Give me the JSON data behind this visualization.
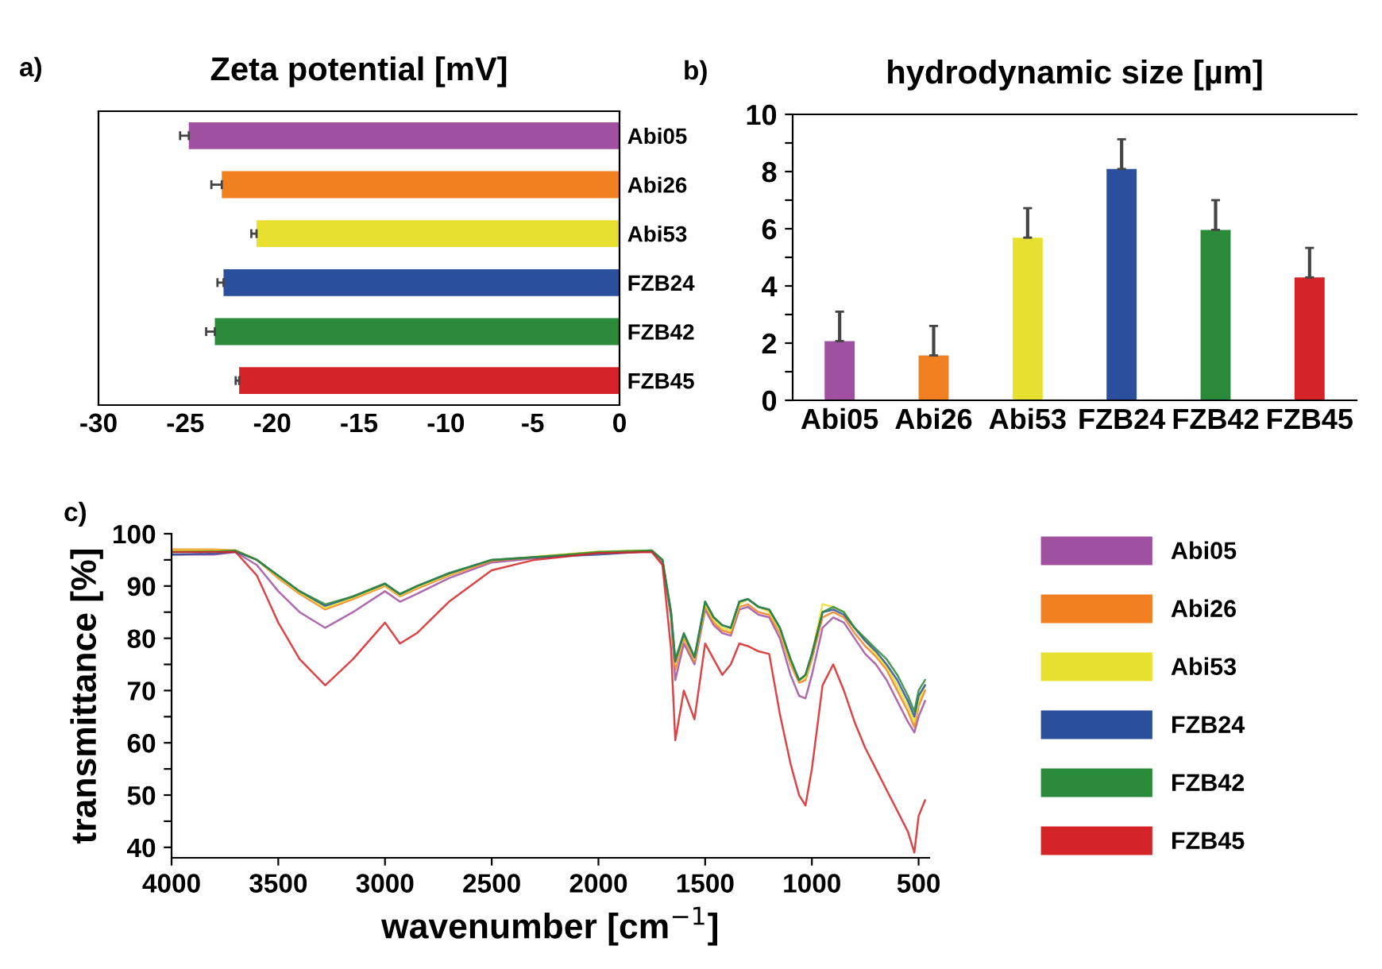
{
  "chart_data": [
    {
      "type": "bar",
      "orientation": "horizontal",
      "title": "Zeta potential [mV]",
      "annotations": [
        "a)"
      ],
      "categories": [
        "Abi05",
        "Abi26",
        "Abi53",
        "FZB24",
        "FZB42",
        "FZB45"
      ],
      "values": [
        -24.8,
        -22.9,
        -20.9,
        -22.8,
        -23.3,
        -21.9
      ],
      "errors": [
        [
          -25.3,
          -24.8
        ],
        [
          -23.5,
          -22.9
        ],
        [
          -21.2,
          -20.9
        ],
        [
          -23.15,
          -22.8
        ],
        [
          -23.8,
          -23.3
        ],
        [
          -22.1,
          -21.9
        ]
      ],
      "colors": [
        "#a050a0",
        "#f08020",
        "#e8e030",
        "#2a4f9c",
        "#2a8a3a",
        "#d42428"
      ],
      "xlim": [
        -30,
        0
      ],
      "xticks": [
        -30,
        -25,
        -20,
        -15,
        -10,
        -5,
        0
      ],
      "grid": false,
      "legend": false
    },
    {
      "type": "bar",
      "title": "hydrodynamic size [µm]",
      "annotations": [
        "b)"
      ],
      "categories": [
        "Abi05",
        "Abi26",
        "Abi53",
        "FZB24",
        "FZB42",
        "FZB45"
      ],
      "values": [
        2.07,
        1.57,
        5.69,
        8.09,
        5.96,
        4.3
      ],
      "errors": [
        [
          2.07,
          3.1
        ],
        [
          1.57,
          2.6
        ],
        [
          5.69,
          6.72
        ],
        [
          8.09,
          9.13
        ],
        [
          5.96,
          7.0
        ],
        [
          4.3,
          5.33
        ]
      ],
      "colors": [
        "#a050a0",
        "#f08020",
        "#e8e030",
        "#2a4f9c",
        "#2a8a3a",
        "#d42428"
      ],
      "ylim": [
        0,
        10
      ],
      "yticks": [
        0,
        {
          "value": 1,
          "label": null
        },
        2,
        {
          "value": 3,
          "label": null
        },
        4,
        {
          "value": 5,
          "label": null
        },
        6,
        {
          "value": 7,
          "label": null
        },
        8,
        {
          "value": 9,
          "label": null
        },
        10
      ],
      "grid": false,
      "legend": false
    },
    {
      "type": "line",
      "annotations": [
        "c)"
      ],
      "xlabel": "wavenumber [cm$^{−1}$]",
      "ylabel": "transmittance [%]",
      "x": [
        4000,
        3800,
        3700,
        3600,
        3500,
        3400,
        3280,
        3150,
        3000,
        2930,
        2850,
        2700,
        2500,
        2300,
        2000,
        1750,
        1700,
        1660,
        1640,
        1600,
        1550,
        1500,
        1460,
        1420,
        1380,
        1340,
        1300,
        1250,
        1200,
        1150,
        1100,
        1060,
        1030,
        1000,
        950,
        900,
        850,
        800,
        750,
        700,
        650,
        600,
        550,
        520,
        500,
        470
      ],
      "series": [
        {
          "name": "Abi05",
          "color": "#a050a0",
          "values": [
            96,
            96,
            96.5,
            94,
            89,
            85,
            82,
            85,
            89,
            87,
            88.5,
            91.5,
            94.5,
            95.3,
            96.3,
            96.6,
            94.5,
            84,
            72,
            79,
            75,
            85.5,
            82.5,
            81,
            80.5,
            85.5,
            86,
            84.5,
            84,
            80,
            73,
            69,
            68.5,
            73,
            82,
            84,
            83,
            80,
            77,
            75,
            72,
            68,
            64,
            62,
            65,
            68
          ]
        },
        {
          "name": "Abi26",
          "color": "#f08020",
          "values": [
            97,
            97,
            96.8,
            95,
            91.5,
            88.5,
            85.5,
            87.5,
            90,
            88,
            89.5,
            92,
            94.8,
            95.5,
            96.5,
            96.8,
            94.8,
            84.5,
            74,
            80,
            75.5,
            86,
            83,
            81.5,
            81,
            86,
            86.5,
            85,
            84.5,
            81,
            75,
            71.5,
            72,
            76,
            84,
            85,
            84,
            81,
            78.5,
            76.5,
            74,
            70,
            66,
            63,
            67,
            70
          ]
        },
        {
          "name": "Abi53",
          "color": "#e8e030",
          "values": [
            96.8,
            96.8,
            96.8,
            95,
            91.8,
            88.8,
            85.8,
            87.8,
            90.2,
            88.2,
            89.8,
            92.2,
            95,
            95.6,
            96.6,
            96.8,
            95,
            85,
            75,
            80.5,
            76,
            86.5,
            83.5,
            82,
            81.5,
            86.5,
            87.5,
            86,
            85,
            81.5,
            75.5,
            72,
            72.5,
            77,
            86.5,
            86,
            85,
            82,
            79.5,
            77,
            74.5,
            71,
            67,
            64,
            68,
            71
          ]
        },
        {
          "name": "FZB24",
          "color": "#2a4f9c",
          "values": [
            96,
            96.2,
            96.6,
            95,
            92,
            89,
            86.2,
            88,
            90.4,
            88.4,
            90,
            92.4,
            95,
            95.5,
            96,
            96.7,
            95,
            85,
            75.5,
            80.8,
            76.3,
            87,
            84,
            82.5,
            82,
            87,
            87.5,
            86,
            85.5,
            82,
            76,
            72,
            73,
            77,
            85,
            85.5,
            84.5,
            82,
            79.5,
            77.5,
            75,
            72,
            68,
            65,
            69,
            71
          ]
        },
        {
          "name": "FZB42",
          "color": "#2a8a3a",
          "values": [
            96.5,
            96.6,
            96.8,
            95,
            92,
            89,
            86.5,
            88,
            90.5,
            88.5,
            90,
            92.5,
            95,
            95.5,
            96.5,
            96.8,
            95,
            85,
            76,
            81,
            76.5,
            87,
            84,
            82.5,
            82,
            87,
            87.5,
            86,
            85.5,
            82,
            76,
            72,
            73,
            77,
            85,
            86,
            85,
            82,
            80,
            78,
            76,
            73,
            69,
            66,
            70,
            72
          ]
        },
        {
          "name": "FZB45",
          "color": "#d42428",
          "values": [
            96.5,
            96.5,
            96.5,
            92,
            83,
            76,
            71,
            76,
            83,
            79,
            81,
            87,
            93,
            95,
            96.3,
            96.5,
            94,
            78,
            60.5,
            70,
            64.5,
            79,
            76,
            73,
            75,
            79,
            78.5,
            77.5,
            77,
            65.5,
            56,
            50,
            48,
            55,
            71,
            75,
            70,
            64,
            59,
            55,
            51,
            47,
            43,
            39,
            46,
            49
          ]
        }
      ],
      "xlim": [
        4000,
        450
      ],
      "xticks": [
        4000,
        3500,
        3000,
        2500,
        2000,
        1500,
        1000,
        500
      ],
      "ylim": [
        38,
        100
      ],
      "yticks": [
        40,
        {
          "value": 45,
          "label": null
        },
        50,
        {
          "value": 55,
          "label": null
        },
        60,
        {
          "value": 65,
          "label": null
        },
        70,
        {
          "value": 75,
          "label": null
        },
        80,
        {
          "value": 85,
          "label": null
        },
        90,
        {
          "value": 95,
          "label": null
        },
        100
      ],
      "grid": false,
      "legend": "right",
      "marker": "none",
      "line_style": "solid"
    }
  ]
}
